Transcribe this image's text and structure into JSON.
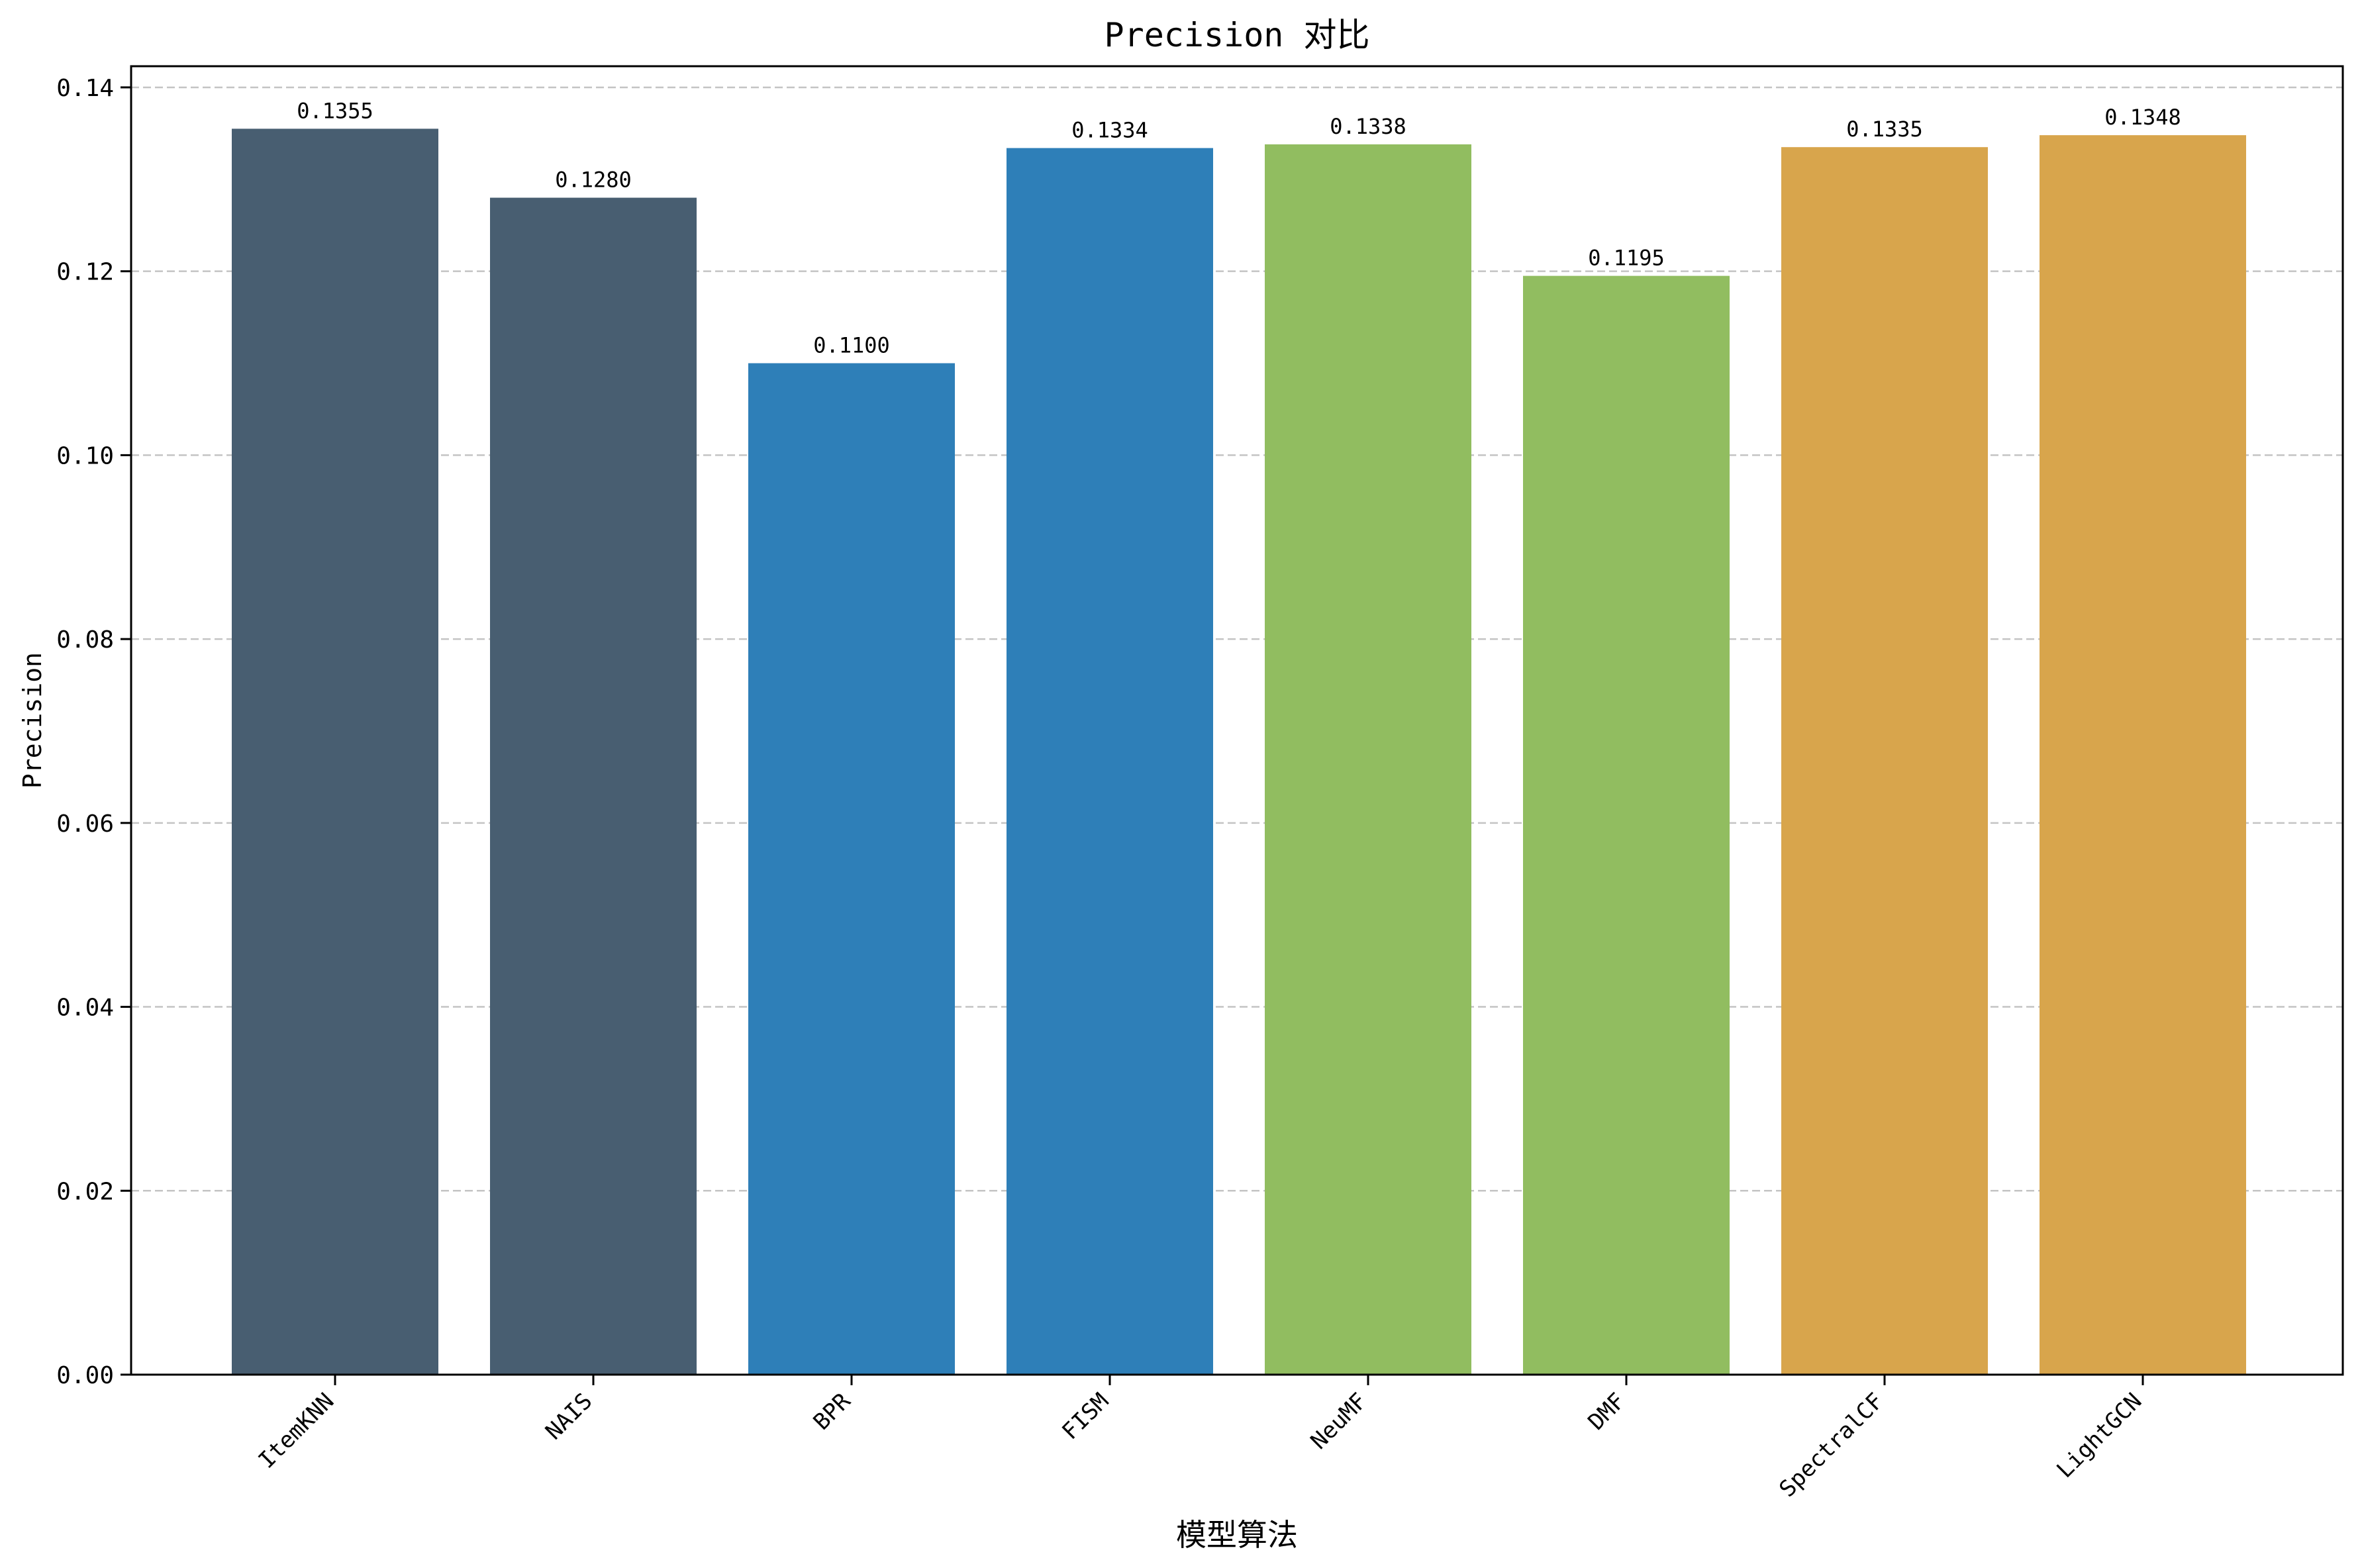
{
  "chart_data": {
    "type": "bar",
    "title": "Precision 对比",
    "xlabel": "模型算法",
    "ylabel": "Precision",
    "ylim": [
      0,
      0.1423
    ],
    "yticks": [
      "0.00",
      "0.02",
      "0.04",
      "0.06",
      "0.08",
      "0.10",
      "0.12",
      "0.14"
    ],
    "ytick_values": [
      0,
      0.02,
      0.04,
      0.06,
      0.08,
      0.1,
      0.12,
      0.14
    ],
    "grid": "y-dashed",
    "categories": [
      "ItemKNN",
      "NAIS",
      "BPR",
      "FISM",
      "NeuMF",
      "DMF",
      "SpectralCF",
      "LightGCN"
    ],
    "values": [
      0.1355,
      0.128,
      0.11,
      0.1334,
      0.1338,
      0.1195,
      0.1335,
      0.1348
    ],
    "value_labels": [
      "0.1355",
      "0.1280",
      "0.1100",
      "0.1334",
      "0.1338",
      "0.1195",
      "0.1335",
      "0.1348"
    ],
    "colors": [
      "#485e71",
      "#485e71",
      "#2e7fb8",
      "#2e7fb8",
      "#91bd60",
      "#91bd60",
      "#d8a54c",
      "#d8a54c"
    ]
  }
}
